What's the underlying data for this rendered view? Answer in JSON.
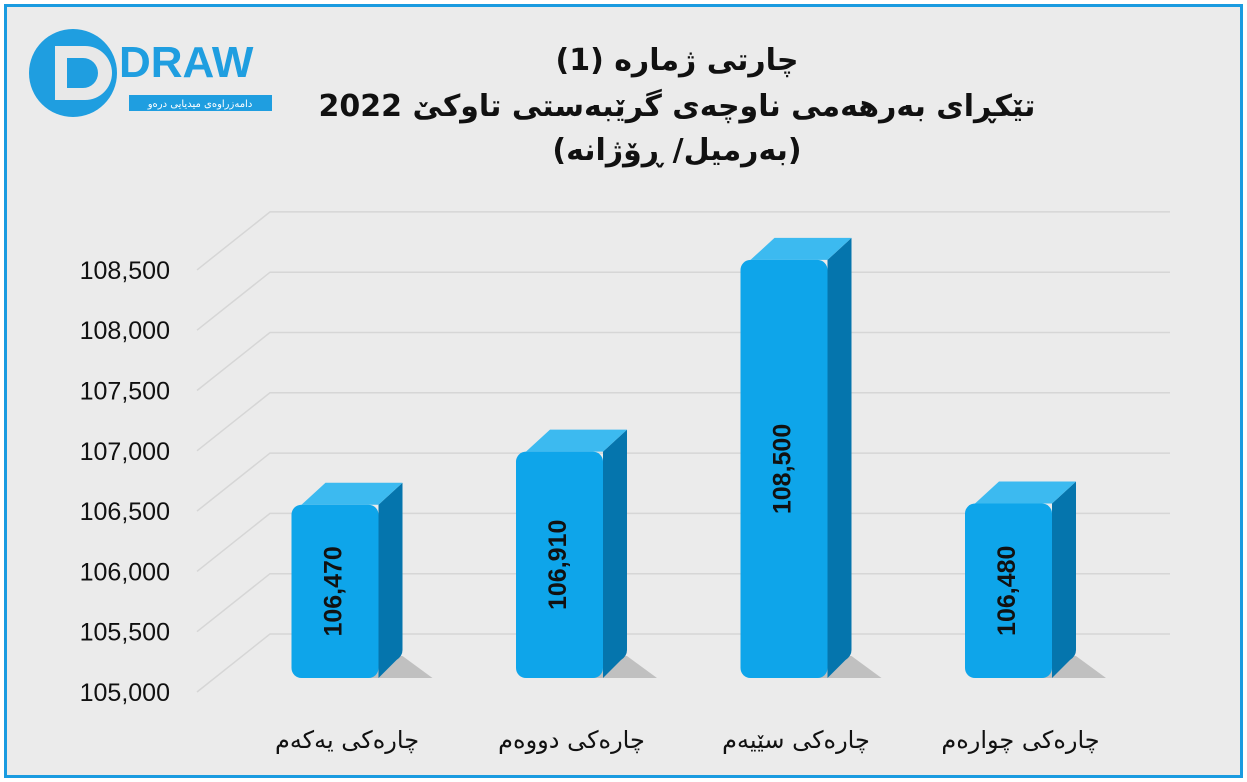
{
  "logo": {
    "text": "DRAW",
    "subtitle": "دامەزراوەی میدیایی درەو"
  },
  "chart_data": {
    "type": "bar",
    "title_lines": [
      "چارتی ژمارە (1)",
      "تێکڕای بەرهەمی ناوچەی گرێبەستی تاوکێ 2022",
      "(بەرمیل/ ڕۆژانە)"
    ],
    "categories": [
      "چارەکی یەکەم",
      "چارەکی دووەم",
      "چارەکی سێیەم",
      "چارەکی چوارەم"
    ],
    "values": [
      106470,
      106910,
      108500,
      106480
    ],
    "data_labels": [
      "106,470",
      "106,910",
      "108,500",
      "106,480"
    ],
    "ylim": [
      105000,
      109000
    ],
    "yticks": [
      "105,000",
      "105,500",
      "106,000",
      "106,500",
      "107,000",
      "107,500",
      "108,000",
      "108,500"
    ],
    "ytick_values": [
      105000,
      105500,
      106000,
      106500,
      107000,
      107500,
      108000,
      108500
    ],
    "grid": true,
    "style": "3d-bar",
    "colors": {
      "bar_front": "#0ea5ea",
      "bar_side": "#0575ad",
      "bar_top": "#3cbaf0",
      "frame": "#1a9be0",
      "background": "#ebebeb"
    }
  }
}
